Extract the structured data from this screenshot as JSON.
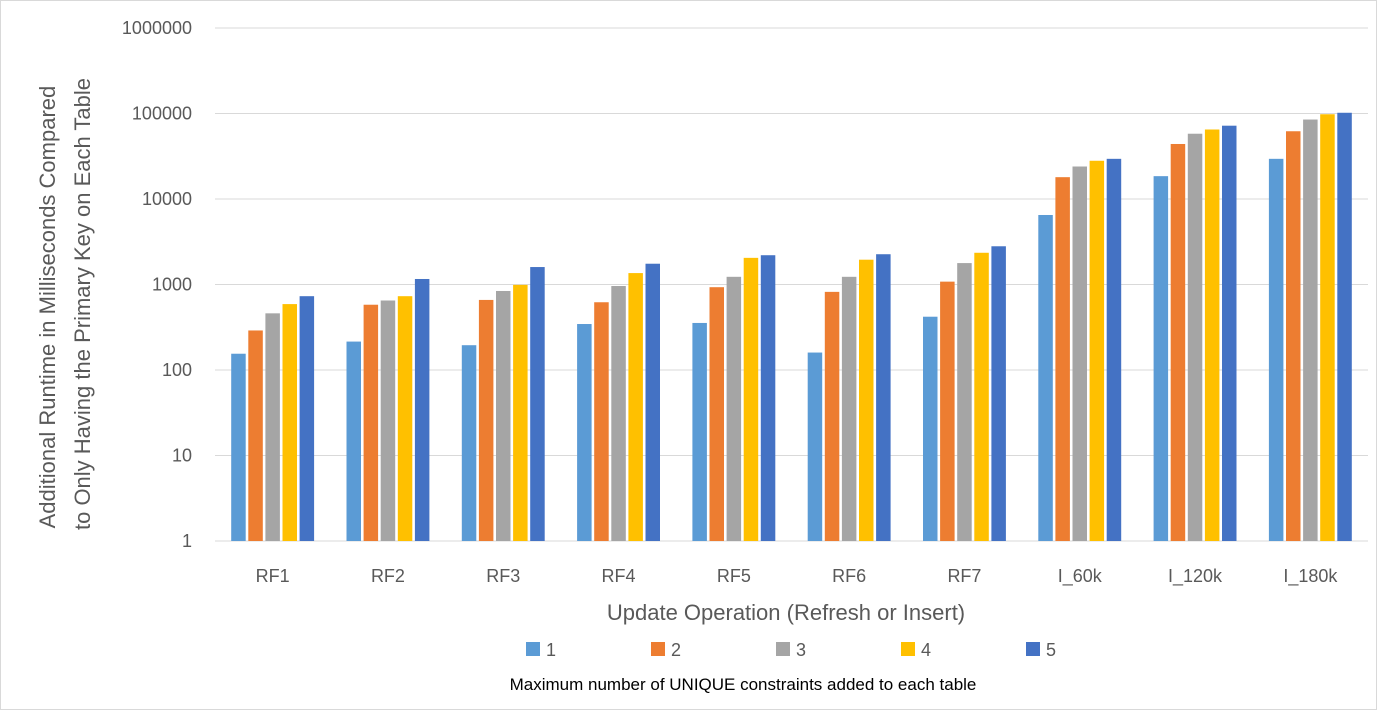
{
  "chart_data": {
    "type": "bar",
    "yscale": "log",
    "ylim": [
      1,
      1000000
    ],
    "yticks": [
      "1",
      "10",
      "100",
      "1000",
      "10000",
      "100000",
      "1000000"
    ],
    "grid": "horizontal",
    "legend_position": "bottom",
    "xlabel": "Update Operation (Refresh or Insert)",
    "ylabel_lines": [
      "Additional Runtime in Milliseconds Compared",
      "to Only Having the Primary Key on Each Table"
    ],
    "legend_title": "Maximum number of UNIQUE constraints added to each table",
    "categories": [
      "RF1",
      "RF2",
      "RF3",
      "RF4",
      "RF5",
      "RF6",
      "RF7",
      "I_60k",
      "I_120k",
      "I_180k"
    ],
    "series": [
      {
        "name": "1",
        "color": "#5b9bd5",
        "values": [
          155,
          215,
          195,
          345,
          355,
          160,
          420,
          6500,
          18500,
          29500
        ]
      },
      {
        "name": "2",
        "color": "#ed7d31",
        "values": [
          290,
          580,
          660,
          620,
          930,
          820,
          1080,
          18000,
          44000,
          62000
        ]
      },
      {
        "name": "3",
        "color": "#a5a5a5",
        "values": [
          460,
          650,
          840,
          960,
          1230,
          1230,
          1780,
          24000,
          58000,
          85000
        ]
      },
      {
        "name": "4",
        "color": "#ffc000",
        "values": [
          590,
          730,
          990,
          1360,
          2050,
          1950,
          2350,
          28000,
          65000,
          98000
        ]
      },
      {
        "name": "5",
        "color": "#4472c4",
        "values": [
          730,
          1160,
          1600,
          1750,
          2200,
          2260,
          2800,
          29500,
          72000,
          102000
        ]
      }
    ]
  },
  "colors": {
    "grid": "#d9d9d9",
    "text": "#595959"
  }
}
